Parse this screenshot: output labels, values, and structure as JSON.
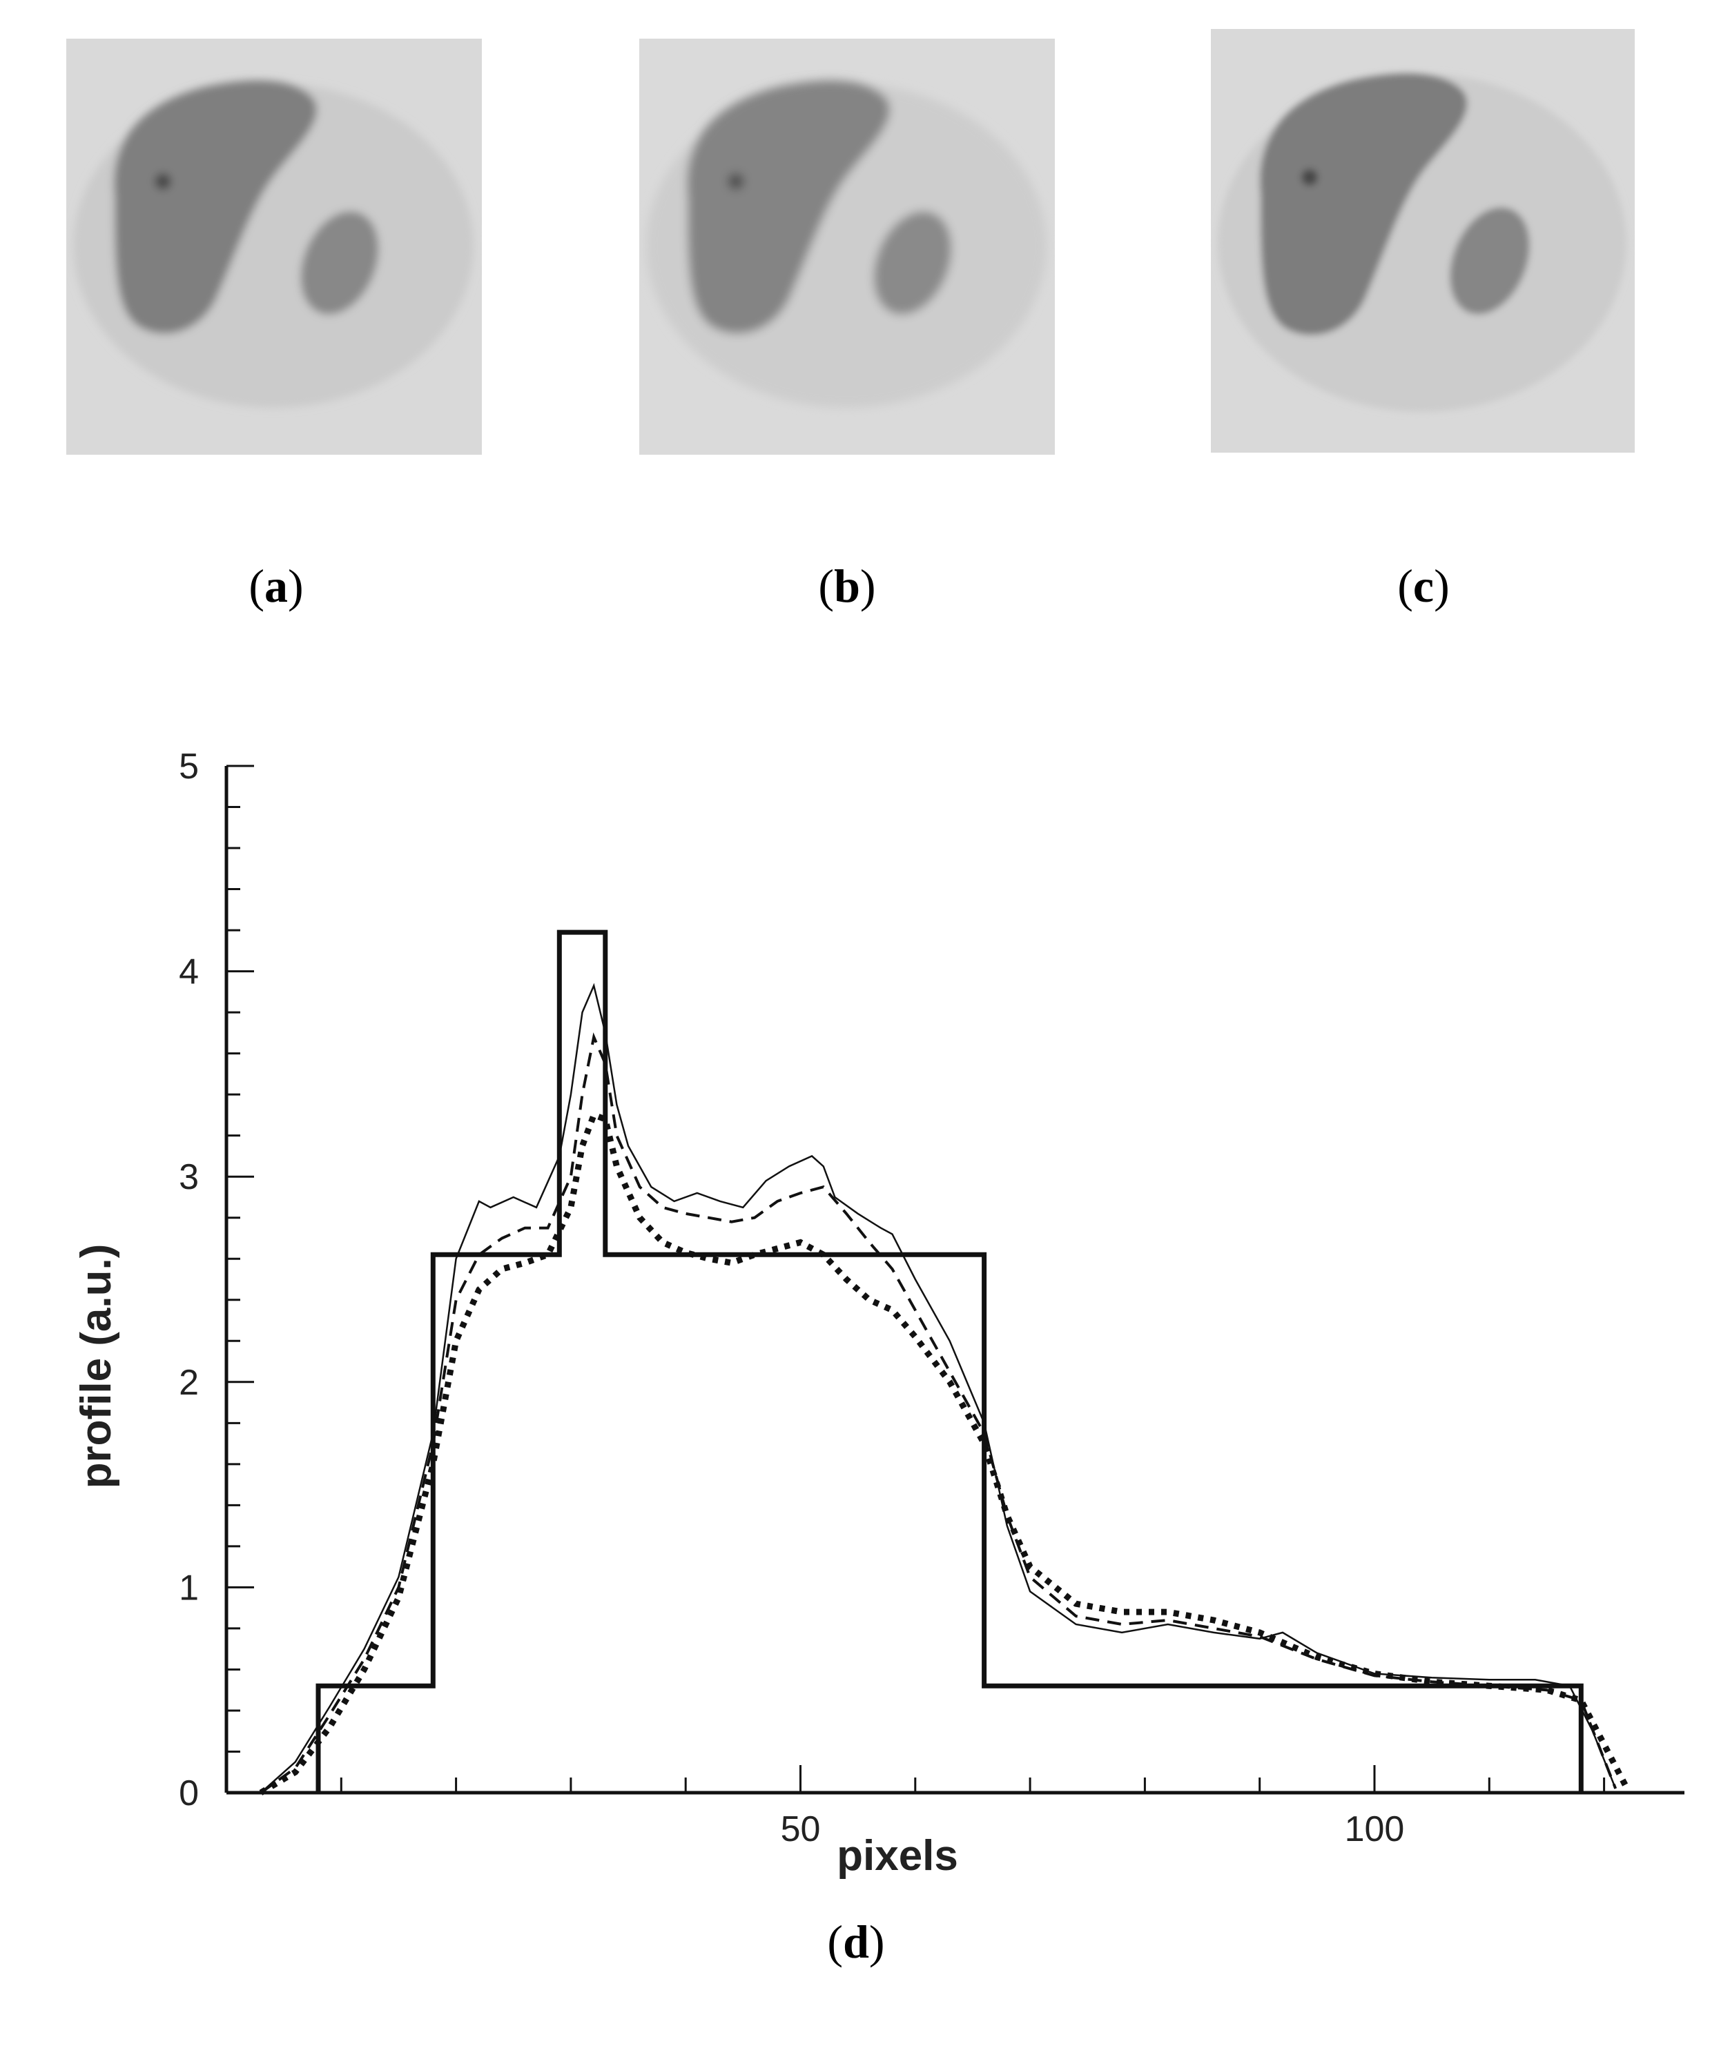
{
  "panels": [
    {
      "label_open": "(",
      "label_letter": "a",
      "label_close": ")"
    },
    {
      "label_open": "(",
      "label_letter": "b",
      "label_close": ")"
    },
    {
      "label_open": "(",
      "label_letter": "c",
      "label_close": ")"
    }
  ],
  "phantom_colors": {
    "background": "#d9d9d9",
    "body": "#cbcbcb",
    "liver": "#7f7f7f",
    "kidney": "#888888",
    "lesion": "#4a4a4a"
  },
  "chart_label": {
    "open": "(",
    "letter": "d",
    "close": ")"
  },
  "chart_data": {
    "type": "line",
    "xlabel": "pixels",
    "ylabel": "profile (a.u.)",
    "xlim": [
      0,
      127
    ],
    "ylim": [
      0,
      5
    ],
    "xticks": [
      50,
      100
    ],
    "yticks": [
      0,
      1,
      2,
      3,
      4,
      5
    ],
    "grid": false,
    "series": [
      {
        "style": "thick-solid",
        "x": [
          8,
          8,
          18,
          18,
          29,
          29,
          33,
          33,
          66,
          66,
          118,
          118
        ],
        "y": [
          0,
          0.52,
          0.52,
          2.62,
          2.62,
          4.19,
          4.19,
          2.62,
          2.62,
          0.52,
          0.52,
          0
        ]
      },
      {
        "style": "thin-solid",
        "x": [
          3,
          6,
          9,
          12,
          15,
          18,
          20,
          22,
          23,
          25,
          27,
          29,
          30,
          31,
          32,
          33,
          34,
          35,
          37,
          39,
          41,
          43,
          45,
          47,
          49,
          51,
          52,
          53,
          55,
          57,
          58,
          60,
          63,
          66,
          68,
          70,
          74,
          78,
          82,
          86,
          90,
          92,
          95,
          100,
          105,
          110,
          114,
          117,
          119,
          121
        ],
        "y": [
          0,
          0.15,
          0.42,
          0.7,
          1.05,
          1.75,
          2.6,
          2.88,
          2.85,
          2.9,
          2.85,
          3.1,
          3.4,
          3.8,
          3.93,
          3.7,
          3.35,
          3.15,
          2.95,
          2.88,
          2.92,
          2.88,
          2.85,
          2.98,
          3.05,
          3.1,
          3.05,
          2.9,
          2.82,
          2.75,
          2.72,
          2.5,
          2.2,
          1.8,
          1.3,
          0.98,
          0.82,
          0.78,
          0.82,
          0.78,
          0.75,
          0.78,
          0.68,
          0.58,
          0.56,
          0.55,
          0.55,
          0.52,
          0.3,
          0.02
        ]
      },
      {
        "style": "dashed",
        "x": [
          3,
          6,
          9,
          12,
          15,
          18,
          20,
          22,
          24,
          26,
          28,
          30,
          31,
          32,
          33,
          34,
          36,
          38,
          40,
          42,
          44,
          46,
          48,
          50,
          52,
          54,
          56,
          58,
          60,
          63,
          66,
          68,
          70,
          74,
          78,
          82,
          86,
          90,
          95,
          100,
          105,
          110,
          115,
          118,
          121
        ],
        "y": [
          0,
          0.12,
          0.38,
          0.65,
          1.0,
          1.7,
          2.4,
          2.62,
          2.7,
          2.75,
          2.75,
          3.0,
          3.4,
          3.68,
          3.55,
          3.2,
          2.95,
          2.85,
          2.82,
          2.8,
          2.78,
          2.8,
          2.88,
          2.92,
          2.95,
          2.82,
          2.68,
          2.55,
          2.35,
          2.05,
          1.75,
          1.35,
          1.05,
          0.86,
          0.82,
          0.84,
          0.8,
          0.76,
          0.65,
          0.57,
          0.54,
          0.52,
          0.5,
          0.45,
          0.02
        ]
      },
      {
        "style": "dotted",
        "x": [
          3,
          6,
          9,
          12,
          15,
          18,
          20,
          22,
          24,
          26,
          28,
          30,
          31,
          32,
          33,
          34,
          36,
          38,
          40,
          42,
          44,
          46,
          48,
          50,
          52,
          54,
          56,
          58,
          60,
          63,
          66,
          68,
          70,
          74,
          78,
          82,
          86,
          90,
          95,
          100,
          105,
          110,
          115,
          118,
          122
        ],
        "y": [
          0,
          0.1,
          0.32,
          0.6,
          0.95,
          1.6,
          2.2,
          2.45,
          2.55,
          2.58,
          2.62,
          2.85,
          3.15,
          3.3,
          3.28,
          3.05,
          2.8,
          2.68,
          2.63,
          2.6,
          2.58,
          2.62,
          2.65,
          2.68,
          2.62,
          2.5,
          2.4,
          2.35,
          2.22,
          2.0,
          1.7,
          1.35,
          1.1,
          0.92,
          0.88,
          0.88,
          0.84,
          0.78,
          0.66,
          0.58,
          0.54,
          0.52,
          0.5,
          0.45,
          0.02
        ]
      }
    ]
  }
}
